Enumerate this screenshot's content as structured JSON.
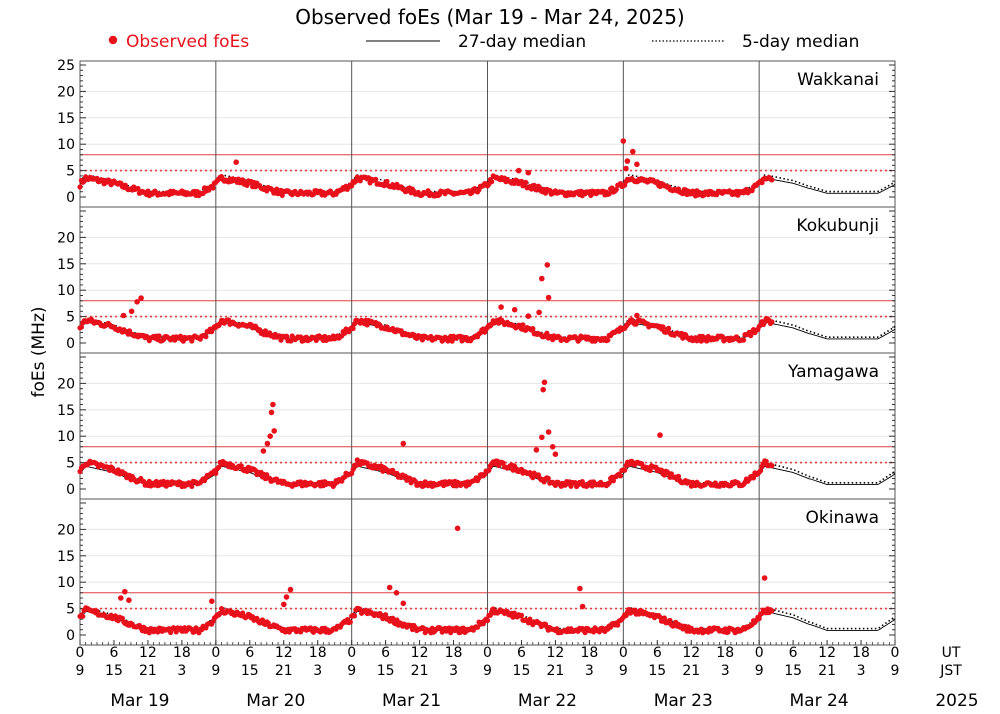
{
  "chart_data": {
    "type": "scatter",
    "title": "Observed foEs (Mar 19 - Mar 24, 2025)",
    "ylabel": "foEs (MHz)",
    "ylim": [
      0,
      25
    ],
    "xlim_days": [
      0,
      6
    ],
    "legend": {
      "placement": "top",
      "observed": "Observed foEs",
      "median27": "27-day median",
      "median5": "5-day median"
    },
    "colors": {
      "observed": "#e8111b",
      "reference_line": "#e04040",
      "frame": "#555555",
      "grid": "#e6e6e6"
    },
    "reference_lines": {
      "solid": 8,
      "dotted": 5
    },
    "x_axis": {
      "ut_label": "UT",
      "jst_label": "JST",
      "year": "2025",
      "ut_ticks": [
        "0",
        "6",
        "12",
        "18",
        "0",
        "6",
        "12",
        "18",
        "0",
        "6",
        "12",
        "18",
        "0",
        "6",
        "12",
        "18",
        "0",
        "6",
        "12",
        "18",
        "0",
        "6",
        "12",
        "18",
        "0"
      ],
      "jst_ticks": [
        "9",
        "15",
        "21",
        "3",
        "9",
        "15",
        "21",
        "3",
        "9",
        "15",
        "21",
        "3",
        "9",
        "15",
        "21",
        "3",
        "9",
        "15",
        "21",
        "3",
        "9",
        "15",
        "21",
        "3",
        "9"
      ],
      "dates": [
        "Mar 19",
        "Mar 20",
        "Mar 21",
        "Mar 22",
        "Mar 23",
        "Mar 24"
      ]
    },
    "panels": [
      {
        "station": "Wakkanai",
        "yticks": [
          "0",
          "5",
          "10",
          "15",
          "20",
          "25"
        ],
        "spikes": [
          {
            "t": 4.0,
            "v": 10.6
          },
          {
            "t": 4.03,
            "v": 6.8
          },
          {
            "t": 4.07,
            "v": 8.6
          },
          {
            "t": 4.1,
            "v": 6.2
          },
          {
            "t": 4.02,
            "v": 5.4
          },
          {
            "t": 1.15,
            "v": 6.6
          },
          {
            "t": 3.23,
            "v": 5.0
          },
          {
            "t": 3.3,
            "v": 4.6
          }
        ],
        "obs_end": 5.1,
        "obs_amp": 1.0,
        "med_amp": 1.0
      },
      {
        "station": "Kokubunji",
        "yticks": [
          "0",
          "5",
          "10",
          "15",
          "20"
        ],
        "spikes": [
          {
            "t": 0.45,
            "v": 8.5
          },
          {
            "t": 0.42,
            "v": 7.8
          },
          {
            "t": 0.38,
            "v": 6.0
          },
          {
            "t": 0.32,
            "v": 5.2
          },
          {
            "t": 3.1,
            "v": 6.8
          },
          {
            "t": 3.2,
            "v": 6.3
          },
          {
            "t": 3.4,
            "v": 12.2
          },
          {
            "t": 3.44,
            "v": 14.8
          },
          {
            "t": 3.45,
            "v": 8.6
          },
          {
            "t": 3.38,
            "v": 5.8
          },
          {
            "t": 3.3,
            "v": 5.1
          },
          {
            "t": 4.1,
            "v": 5.2
          }
        ],
        "obs_end": 5.1,
        "obs_amp": 1.2,
        "med_amp": 1.1
      },
      {
        "station": "Yamagawa",
        "yticks": [
          "0",
          "5",
          "10",
          "15",
          "20"
        ],
        "spikes": [
          {
            "t": 1.42,
            "v": 16.0
          },
          {
            "t": 1.41,
            "v": 14.5
          },
          {
            "t": 1.43,
            "v": 11.0
          },
          {
            "t": 1.4,
            "v": 10.0
          },
          {
            "t": 1.38,
            "v": 8.6
          },
          {
            "t": 1.35,
            "v": 7.2
          },
          {
            "t": 2.38,
            "v": 8.6
          },
          {
            "t": 3.42,
            "v": 20.2
          },
          {
            "t": 3.41,
            "v": 18.8
          },
          {
            "t": 3.45,
            "v": 10.8
          },
          {
            "t": 3.4,
            "v": 9.8
          },
          {
            "t": 3.48,
            "v": 8.0
          },
          {
            "t": 3.36,
            "v": 7.4
          },
          {
            "t": 4.27,
            "v": 10.2
          },
          {
            "t": 3.5,
            "v": 6.6
          }
        ],
        "obs_end": 5.1,
        "obs_amp": 1.4,
        "med_amp": 1.2
      },
      {
        "station": "Okinawa",
        "yticks": [
          "0",
          "5",
          "10",
          "15",
          "20"
        ],
        "spikes": [
          {
            "t": 0.33,
            "v": 8.2
          },
          {
            "t": 0.3,
            "v": 7.0
          },
          {
            "t": 0.36,
            "v": 6.6
          },
          {
            "t": 1.55,
            "v": 8.6
          },
          {
            "t": 1.52,
            "v": 7.2
          },
          {
            "t": 1.5,
            "v": 5.8
          },
          {
            "t": 2.28,
            "v": 9.0
          },
          {
            "t": 2.33,
            "v": 8.0
          },
          {
            "t": 2.38,
            "v": 6.0
          },
          {
            "t": 2.78,
            "v": 20.2
          },
          {
            "t": 3.68,
            "v": 8.8
          },
          {
            "t": 3.7,
            "v": 5.4
          },
          {
            "t": 5.04,
            "v": 10.8
          },
          {
            "t": 0.97,
            "v": 6.4
          }
        ],
        "obs_end": 5.1,
        "obs_amp": 1.3,
        "med_amp": 1.25
      }
    ]
  }
}
